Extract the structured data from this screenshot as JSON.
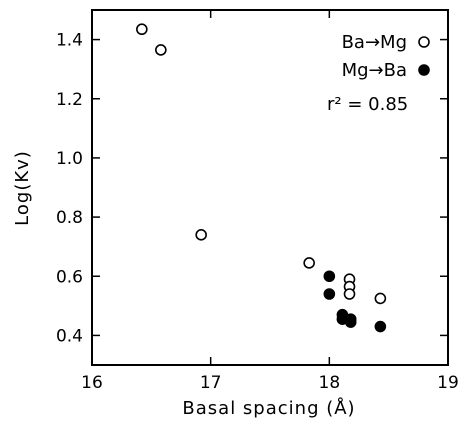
{
  "chart_data": {
    "type": "scatter",
    "xlabel": "Basal spacing (Å)",
    "ylabel": "Log(Kv)",
    "xlim": [
      16,
      19
    ],
    "ylim": [
      0.3,
      1.5
    ],
    "xticks": [
      16,
      17,
      18,
      19
    ],
    "yticks": [
      0.4,
      0.6,
      0.8,
      1.0,
      1.2,
      1.4
    ],
    "xtick_labels": [
      "16",
      "17",
      "18",
      "19"
    ],
    "ytick_labels": [
      "0.4",
      "0.6",
      "0.8",
      "1.0",
      "1.2",
      "1.4"
    ],
    "grid": false,
    "legend_position": "top-right",
    "annotation": "r² =  0.85",
    "series": [
      {
        "name": "Ba→Mg",
        "marker": "open-circle",
        "color": "#000000",
        "points": [
          {
            "x": 16.42,
            "y": 1.435
          },
          {
            "x": 16.58,
            "y": 1.365
          },
          {
            "x": 16.92,
            "y": 0.74
          },
          {
            "x": 17.83,
            "y": 0.645
          },
          {
            "x": 18.17,
            "y": 0.59
          },
          {
            "x": 18.17,
            "y": 0.565
          },
          {
            "x": 18.17,
            "y": 0.54
          },
          {
            "x": 18.43,
            "y": 0.525
          }
        ]
      },
      {
        "name": "Mg→Ba",
        "marker": "filled-circle",
        "color": "#000000",
        "points": [
          {
            "x": 18.0,
            "y": 0.6
          },
          {
            "x": 18.0,
            "y": 0.54
          },
          {
            "x": 18.11,
            "y": 0.47
          },
          {
            "x": 18.11,
            "y": 0.455
          },
          {
            "x": 18.18,
            "y": 0.455
          },
          {
            "x": 18.18,
            "y": 0.445
          },
          {
            "x": 18.43,
            "y": 0.43
          }
        ]
      }
    ]
  }
}
